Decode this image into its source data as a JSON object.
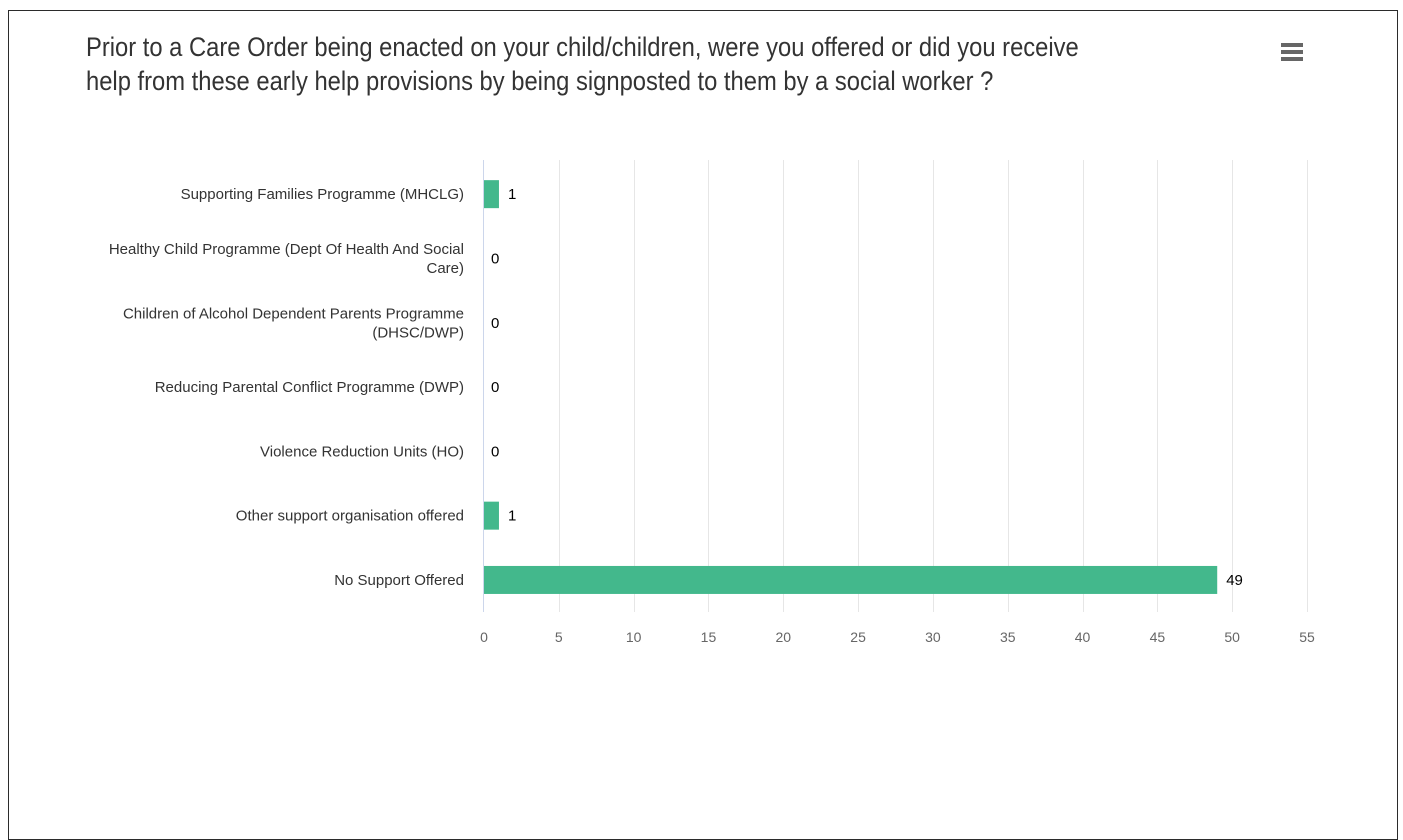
{
  "chart_title": "Prior to a Care Order being enacted on your child/children, were you offered or did you receive help from these early help provisions by being signposted to them by a social worker ?",
  "menu": {
    "icon": "hamburger-menu-icon"
  },
  "colors": {
    "bar": "#43b88c",
    "grid": "#e6e6e6",
    "axis": "#ccd6eb",
    "label": "#333333",
    "tick": "#666666"
  },
  "chart_data": {
    "type": "bar",
    "orientation": "horizontal",
    "title": "Prior to a Care Order being enacted on your child/children, were you offered or did you receive help from these early help provisions by being signposted to them by a social worker ?",
    "categories": [
      "Supporting Families Programme (MHCLG)",
      "Healthy Child Programme (Dept Of Health And Social Care)",
      "Children of Alcohol Dependent Parents Programme (DHSC/DWP)",
      "Reducing Parental Conflict Programme (DWP)",
      "Violence Reduction Units (HO)",
      "Other support organisation offered",
      "No Support Offered"
    ],
    "category_lines": [
      [
        "Supporting Families Programme (MHCLG)"
      ],
      [
        "Healthy Child Programme (Dept Of Health And Social",
        "Care)"
      ],
      [
        "Children of Alcohol Dependent Parents Programme",
        "(DHSC/DWP)"
      ],
      [
        "Reducing Parental Conflict Programme (DWP)"
      ],
      [
        "Violence Reduction Units (HO)"
      ],
      [
        "Other support organisation offered"
      ],
      [
        "No Support Offered"
      ]
    ],
    "values": [
      1,
      0,
      0,
      0,
      0,
      1,
      49
    ],
    "data_labels": [
      "1",
      "0",
      "0",
      "0",
      "0",
      "1",
      "49"
    ],
    "xlim": [
      0,
      55
    ],
    "ticks": [
      0,
      5,
      10,
      15,
      20,
      25,
      30,
      35,
      40,
      45,
      50,
      55
    ],
    "tick_labels": [
      "0",
      "5",
      "10",
      "15",
      "20",
      "25",
      "30",
      "35",
      "40",
      "45",
      "50",
      "55"
    ],
    "xlabel": "",
    "ylabel": "",
    "grid": true,
    "legend": "none"
  }
}
